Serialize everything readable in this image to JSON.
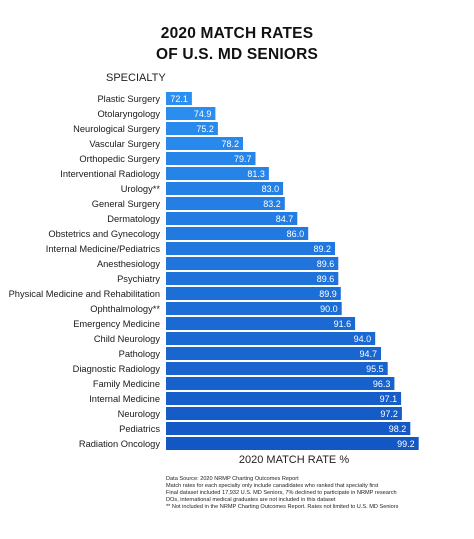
{
  "header": {
    "title_line1": "2020 MATCH RATES",
    "title_line2": "OF U.S. MD SENIORS",
    "specialty_heading": "SPECIALTY"
  },
  "colors": {
    "bar_light": "#2b8ff2",
    "bar_mid": "#1c70dc",
    "bar_dark": "#1357c4",
    "value_text": "#ffffff"
  },
  "chart_data": {
    "type": "bar",
    "orientation": "horizontal",
    "categories": [
      "Plastic Surgery",
      "Otolaryngology",
      "Neurological Surgery",
      "Vascular Surgery",
      "Orthopedic Surgery",
      "Interventional Radiology",
      "Urology**",
      "General Surgery",
      "Dermatology",
      "Obstetrics and Gynecology",
      "Internal Medicine/Pediatrics",
      "Anesthesiology",
      "Psychiatry",
      "Physical Medicine and Rehabilitation",
      "Ophthalmology**",
      "Emergency Medicine",
      "Child Neurology",
      "Pathology",
      "Diagnostic Radiology",
      "Family Medicine",
      "Internal Medicine",
      "Neurology",
      "Pediatrics",
      "Radiation Oncology"
    ],
    "values": [
      72.1,
      74.9,
      75.2,
      78.2,
      79.7,
      81.3,
      83.0,
      83.2,
      84.7,
      86.0,
      89.2,
      89.6,
      89.6,
      89.9,
      90.0,
      91.6,
      94.0,
      94.7,
      95.5,
      96.3,
      97.1,
      97.2,
      98.2,
      99.2
    ],
    "value_labels": [
      "72.1",
      "74.9",
      "75.2",
      "78.2",
      "79.7",
      "81.3",
      "83.0",
      "83.2",
      "84.7",
      "86.0",
      "89.2",
      "89.6",
      "89.6",
      "89.9",
      "90.0",
      "91.6",
      "94.0",
      "94.7",
      "95.5",
      "96.3",
      "97.1",
      "97.2",
      "98.2",
      "99.2"
    ],
    "title": "2020 MATCH RATES OF U.S. MD SENIORS",
    "xlabel": "2020 MATCH RATE %",
    "ylabel": "SPECIALTY",
    "xlim": [
      0,
      100
    ],
    "grid": false,
    "legend": "none"
  },
  "notes": [
    "Data Source: 2020 NRMP Charting Outcomes Report",
    "Match rates for each specialty only include canadidates who ranked that specialty first",
    "Final dataset included 17,932 U.S. MD Seniors, 7% declined to participate in NRMP research",
    "DOs, international medical graduates are not included in this dataset",
    "** Not included in the NRMP Charting Outcomes Report. Rates not limited to U.S. MD Seniors"
  ]
}
